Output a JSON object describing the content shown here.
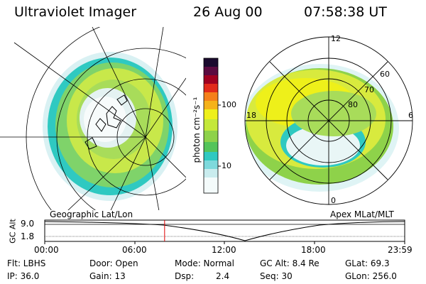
{
  "header": {
    "title": "Ultraviolet Imager",
    "date": "26 Aug 00",
    "time": "07:58:38 UT"
  },
  "colorbar": {
    "unit_label": "photon cm⁻²s⁻¹",
    "ticks": [
      "100",
      "10"
    ],
    "scale": "log"
  },
  "left_map": {
    "caption": "Geographic Lat/Lon"
  },
  "right_map": {
    "caption": "Apex MLat/MLT",
    "mlt_labels": [
      "12",
      "18",
      "6",
      "0"
    ],
    "mlat_labels": [
      "60",
      "70",
      "80"
    ]
  },
  "timeline": {
    "ylabel": "GC Alt",
    "yticks": [
      "9.0",
      "1.8"
    ],
    "xticks": [
      "00:00",
      "06:00",
      "12:00",
      "18:00",
      "23:59"
    ],
    "marker_time_fraction": 0.333,
    "marker_color": "#e00000"
  },
  "info": {
    "filter": "Flt: LBHS",
    "ip": "IP: 36.0",
    "door": "Door: Open",
    "gain": "Gain: 13",
    "mode": "Mode: Normal",
    "dsp_label": "Dsp:",
    "dsp_value": "2.4",
    "gc_alt": "GC Alt: 8.4 Re",
    "seq": "Seq: 30",
    "glat": "GLat: 69.3",
    "glon": "GLon: 256.0"
  }
}
